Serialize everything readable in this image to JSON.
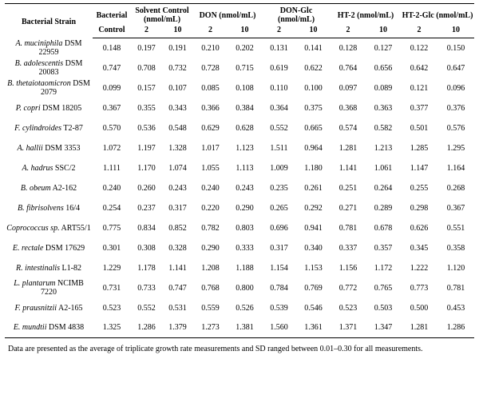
{
  "table": {
    "headers": {
      "strain": "Bacterial Strain",
      "bacterial": "Bacterial",
      "control": "Control",
      "solvent_control": "Solvent Control (nmol/mL)",
      "don": "DON (nmol/mL)",
      "don_glc": "DON-Glc (nmol/mL)",
      "ht2": "HT-2 (nmol/mL)",
      "ht2_glc": "HT-2-Glc (nmol/mL)",
      "conc_low": "2",
      "conc_high": "10"
    },
    "rows": [
      {
        "name": "A. muciniphila",
        "id": "DSM 22959",
        "values": [
          "0.148",
          "0.197",
          "0.191",
          "0.210",
          "0.202",
          "0.131",
          "0.141",
          "0.128",
          "0.127",
          "0.122",
          "0.150"
        ]
      },
      {
        "name": "B. adolescentis",
        "id": "DSM 20083",
        "values": [
          "0.747",
          "0.708",
          "0.732",
          "0.728",
          "0.715",
          "0.619",
          "0.622",
          "0.764",
          "0.656",
          "0.642",
          "0.647"
        ]
      },
      {
        "name": "B. thetaiotaomicron",
        "id": "DSM 2079",
        "values": [
          "0.099",
          "0.157",
          "0.107",
          "0.085",
          "0.108",
          "0.110",
          "0.100",
          "0.097",
          "0.089",
          "0.121",
          "0.096"
        ]
      },
      {
        "name": "P. copri",
        "id": "DSM 18205",
        "values": [
          "0.367",
          "0.355",
          "0.343",
          "0.366",
          "0.384",
          "0.364",
          "0.375",
          "0.368",
          "0.363",
          "0.377",
          "0.376"
        ]
      },
      {
        "name": "F. cylindroides",
        "id": "T2-87",
        "values": [
          "0.570",
          "0.536",
          "0.548",
          "0.629",
          "0.628",
          "0.552",
          "0.665",
          "0.574",
          "0.582",
          "0.501",
          "0.576"
        ]
      },
      {
        "name": "A. hallii",
        "id": "DSM 3353",
        "values": [
          "1.072",
          "1.197",
          "1.328",
          "1.017",
          "1.123",
          "1.511",
          "0.964",
          "1.281",
          "1.213",
          "1.285",
          "1.295"
        ]
      },
      {
        "name": "A. hadrus",
        "id": "SSC/2",
        "values": [
          "1.111",
          "1.170",
          "1.074",
          "1.055",
          "1.113",
          "1.009",
          "1.180",
          "1.141",
          "1.061",
          "1.147",
          "1.164"
        ]
      },
      {
        "name": "B. obeum",
        "id": "A2-162",
        "values": [
          "0.240",
          "0.260",
          "0.243",
          "0.240",
          "0.243",
          "0.235",
          "0.261",
          "0.251",
          "0.264",
          "0.255",
          "0.268"
        ]
      },
      {
        "name": "B. fibrisolvens",
        "id": "16/4",
        "values": [
          "0.254",
          "0.237",
          "0.317",
          "0.220",
          "0.290",
          "0.265",
          "0.292",
          "0.271",
          "0.289",
          "0.298",
          "0.367"
        ]
      },
      {
        "name": "Coprococcus sp.",
        "id": "ART55/1",
        "values": [
          "0.775",
          "0.834",
          "0.852",
          "0.782",
          "0.803",
          "0.696",
          "0.941",
          "0.781",
          "0.678",
          "0.626",
          "0.551"
        ]
      },
      {
        "name": "E. rectale",
        "id": "DSM 17629",
        "values": [
          "0.301",
          "0.308",
          "0.328",
          "0.290",
          "0.333",
          "0.317",
          "0.340",
          "0.337",
          "0.357",
          "0.345",
          "0.358"
        ]
      },
      {
        "name": "R. intestinalis",
        "id": "L1-82",
        "values": [
          "1.229",
          "1.178",
          "1.141",
          "1.208",
          "1.188",
          "1.154",
          "1.153",
          "1.156",
          "1.172",
          "1.222",
          "1.120"
        ]
      },
      {
        "name": "L. plantarum",
        "id": "NCIMB 7220",
        "values": [
          "0.731",
          "0.733",
          "0.747",
          "0.768",
          "0.800",
          "0.784",
          "0.769",
          "0.772",
          "0.765",
          "0.773",
          "0.781"
        ]
      },
      {
        "name": "F. prausnitzii",
        "id": "A2-165",
        "values": [
          "0.523",
          "0.552",
          "0.531",
          "0.559",
          "0.526",
          "0.539",
          "0.546",
          "0.523",
          "0.503",
          "0.500",
          "0.453"
        ]
      },
      {
        "name": "E. mundtii",
        "id": "DSM 4838",
        "values": [
          "1.325",
          "1.286",
          "1.379",
          "1.273",
          "1.381",
          "1.560",
          "1.361",
          "1.371",
          "1.347",
          "1.281",
          "1.286"
        ]
      }
    ]
  },
  "footnote": "Data are presented as the average of triplicate growth rate measurements and SD ranged between 0.01–0.30 for all measurements."
}
